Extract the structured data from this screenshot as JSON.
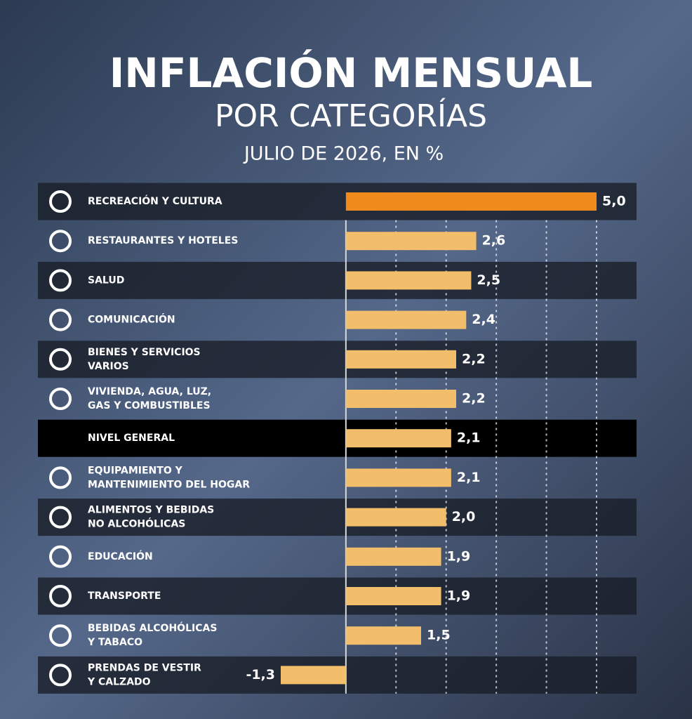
{
  "chart_data": {
    "type": "bar",
    "orientation": "horizontal",
    "title": "INFLACIÓN MENSUAL",
    "subtitle": "POR CATEGORÍAS",
    "caption": "JULIO DE 2026, EN %",
    "categories": [
      [
        "RECREACIÓN Y CULTURA"
      ],
      [
        "RESTAURANTES Y HOTELES"
      ],
      [
        "SALUD"
      ],
      [
        "COMUNICACIÓN"
      ],
      [
        "BIENES Y SERVICIOS",
        "VARIOS"
      ],
      [
        "VIVIENDA, AGUA, LUZ,",
        "GAS Y COMBUSTIBLES"
      ],
      [
        "NIVEL GENERAL"
      ],
      [
        "EQUIPAMIENTO Y",
        "MANTENIMIENTO DEL HOGAR"
      ],
      [
        "ALIMENTOS Y BEBIDAS",
        "NO ALCOHÓLICAS"
      ],
      [
        "EDUCACIÓN"
      ],
      [
        "TRANSPORTE"
      ],
      [
        "BEBIDAS ALCOHÓLICAS",
        "Y TABACO"
      ],
      [
        "PRENDAS DE VESTIR",
        "Y CALZADO"
      ]
    ],
    "values": [
      5.0,
      2.6,
      2.5,
      2.4,
      2.2,
      2.2,
      2.1,
      2.1,
      2.0,
      1.9,
      1.9,
      1.5,
      -1.3
    ],
    "value_labels": [
      "5,0",
      "2,6",
      "2,5",
      "2,4",
      "2,2",
      "2,2",
      "2,1",
      "2,1",
      "2,0",
      "1,9",
      "1,9",
      "1,5",
      "-1,3"
    ],
    "colors": [
      "#f08a1c",
      "#f3be6b",
      "#f3be6b",
      "#f3be6b",
      "#f3be6b",
      "#f3be6b",
      "#f3be6b",
      "#f3be6b",
      "#f3be6b",
      "#f3be6b",
      "#f3be6b",
      "#f3be6b",
      "#f3be6b"
    ],
    "xlim": [
      -1.3,
      5
    ],
    "xticks": [
      0,
      1,
      2,
      3,
      4,
      5
    ],
    "grid": true
  }
}
